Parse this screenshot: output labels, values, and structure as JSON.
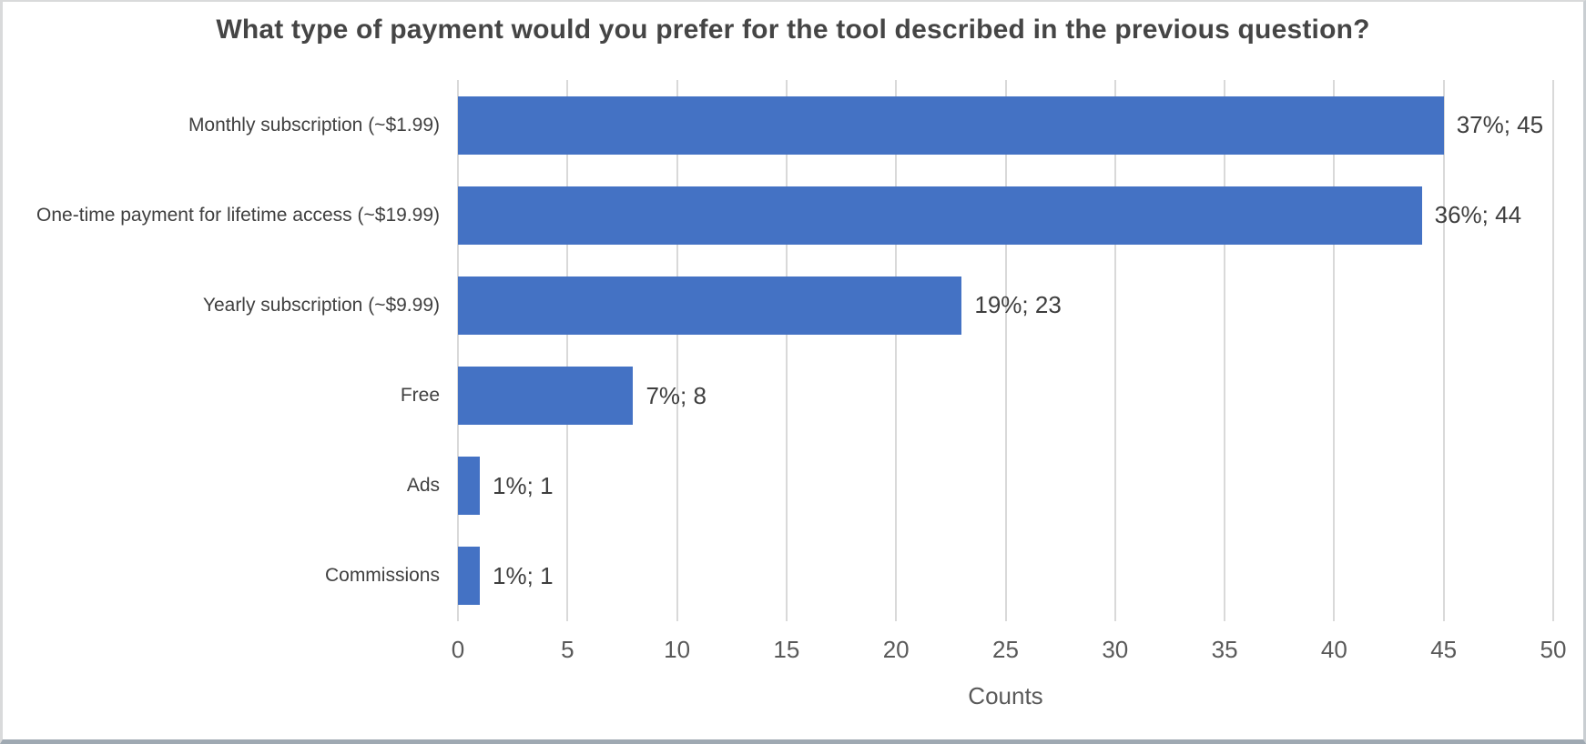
{
  "chart_data": {
    "type": "bar",
    "orientation": "horizontal",
    "title": "What type of payment would you prefer for the tool described in the previous question?",
    "categories": [
      "Monthly subscription (~$1.99)",
      "One-time payment for lifetime access (~$19.99)",
      "Yearly subscription (~$9.99)",
      "Free",
      "Ads",
      "Commissions"
    ],
    "values": [
      45,
      44,
      23,
      8,
      1,
      1
    ],
    "percentages": [
      37,
      36,
      19,
      7,
      1,
      1
    ],
    "data_labels": [
      "37%; 45",
      "36%; 44",
      "19%; 23",
      "7%; 8",
      "1%; 1",
      "1%; 1"
    ],
    "xlabel": "Counts",
    "xlim": [
      0,
      50
    ],
    "x_ticks": [
      0,
      5,
      10,
      15,
      20,
      25,
      30,
      35,
      40,
      45,
      50
    ],
    "legend": "none",
    "grid": "vertical-gridlines",
    "bar_color": "#4472C4",
    "gridline_color": "#D9D9D9"
  }
}
